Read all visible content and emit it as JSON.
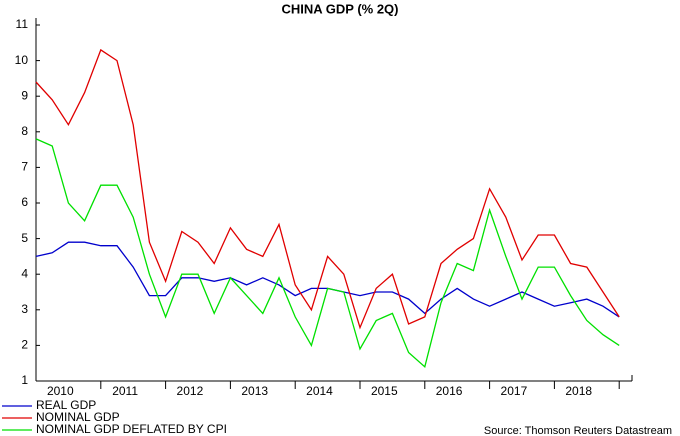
{
  "chart_data": {
    "type": "line",
    "title": "CHINA GDP (% 2Q)",
    "categories": [
      null,
      "2010",
      null,
      null,
      null,
      "2011",
      null,
      null,
      null,
      "2012",
      null,
      null,
      null,
      "2013",
      null,
      null,
      null,
      "2014",
      null,
      null,
      null,
      "2015",
      null,
      null,
      null,
      "2016",
      null,
      null,
      null,
      "2017",
      null,
      null,
      null,
      "2018",
      null,
      null,
      null
    ],
    "series": [
      {
        "name": "REAL GDP",
        "color": "#0000cc",
        "values": [
          4.5,
          4.6,
          4.9,
          4.9,
          4.8,
          4.8,
          4.2,
          3.4,
          3.4,
          3.9,
          3.9,
          3.8,
          3.9,
          3.7,
          3.9,
          3.7,
          3.4,
          3.6,
          3.6,
          3.5,
          3.4,
          3.5,
          3.5,
          3.3,
          2.9,
          3.3,
          3.6,
          3.3,
          3.1,
          3.3,
          3.5,
          3.3,
          3.1,
          3.2,
          3.3,
          3.1,
          2.8
        ]
      },
      {
        "name": "NOMINAL GDP",
        "color": "#e00000",
        "values": [
          9.4,
          8.9,
          8.2,
          9.1,
          10.3,
          10.0,
          8.2,
          4.9,
          3.8,
          5.2,
          4.9,
          4.3,
          5.3,
          4.7,
          4.5,
          5.4,
          3.7,
          3.0,
          4.5,
          4.0,
          2.5,
          3.6,
          4.0,
          2.6,
          2.8,
          4.3,
          4.7,
          5.0,
          6.4,
          5.6,
          4.4,
          5.1,
          5.1,
          4.3,
          4.2,
          3.5,
          2.8
        ]
      },
      {
        "name": "NOMINAL GDP DEFLATED BY CPI",
        "color": "#00e000",
        "values": [
          7.8,
          7.6,
          6.0,
          5.5,
          6.5,
          6.5,
          5.6,
          4.0,
          2.8,
          4.0,
          4.0,
          2.9,
          3.9,
          3.4,
          2.9,
          3.9,
          2.8,
          2.0,
          3.6,
          3.5,
          1.9,
          2.7,
          2.9,
          1.8,
          1.4,
          3.2,
          4.3,
          4.1,
          5.8,
          4.5,
          3.3,
          4.2,
          4.2,
          3.4,
          2.7,
          2.3,
          2.0
        ]
      }
    ],
    "ylim": [
      1,
      11
    ],
    "yticks": [
      1,
      2,
      3,
      4,
      5,
      6,
      7,
      8,
      9,
      10,
      11
    ],
    "source": "Source: Thomson Reuters Datastream"
  }
}
